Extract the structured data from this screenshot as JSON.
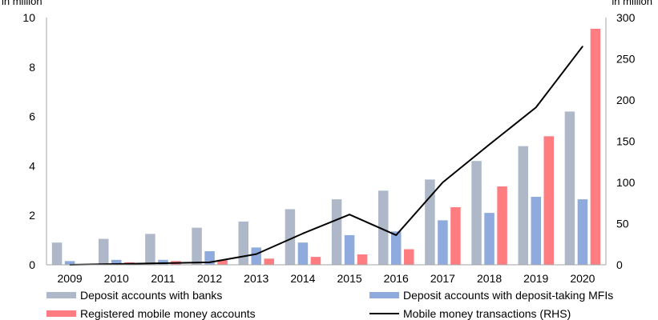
{
  "chart_data": {
    "type": "bar",
    "title": "",
    "xlabel": "",
    "ylabel_left": "in million",
    "ylabel_right": "in million",
    "categories": [
      "2009",
      "2010",
      "2011",
      "2012",
      "2013",
      "2014",
      "2015",
      "2016",
      "2017",
      "2018",
      "2019",
      "2020"
    ],
    "ylim_left": [
      0,
      10
    ],
    "yticks_left": [
      "0",
      "2",
      "4",
      "6",
      "8",
      "10"
    ],
    "ylim_right": [
      0,
      300
    ],
    "yticks_right": [
      "0",
      "50",
      "100",
      "150",
      "200",
      "250",
      "300"
    ],
    "grid": false,
    "legend_position": "bottom",
    "series": [
      {
        "name": "Deposit accounts with banks",
        "type": "bar",
        "axis": "left",
        "color": "#aeb8c8",
        "values": [
          0.9,
          1.05,
          1.25,
          1.5,
          1.75,
          2.25,
          2.65,
          3.0,
          3.45,
          4.2,
          4.8,
          6.2
        ]
      },
      {
        "name": "Deposit accounts with deposit-taking MFIs",
        "type": "bar",
        "axis": "left",
        "color": "#8faadc",
        "values": [
          0.15,
          0.2,
          0.2,
          0.55,
          0.7,
          0.9,
          1.2,
          1.35,
          1.8,
          2.1,
          2.75,
          2.65
        ]
      },
      {
        "name": "Registered mobile money accounts",
        "type": "bar",
        "axis": "left",
        "color": "#ff7c80",
        "values": [
          0.03,
          0.1,
          0.15,
          0.2,
          0.25,
          0.32,
          0.42,
          0.63,
          2.33,
          3.17,
          5.2,
          9.55
        ]
      },
      {
        "name": "Mobile money transactions (RHS)",
        "type": "line",
        "axis": "right",
        "color": "#000000",
        "values": [
          0,
          1,
          2,
          3,
          13,
          38,
          61,
          36,
          100,
          146,
          191,
          265
        ]
      }
    ]
  }
}
